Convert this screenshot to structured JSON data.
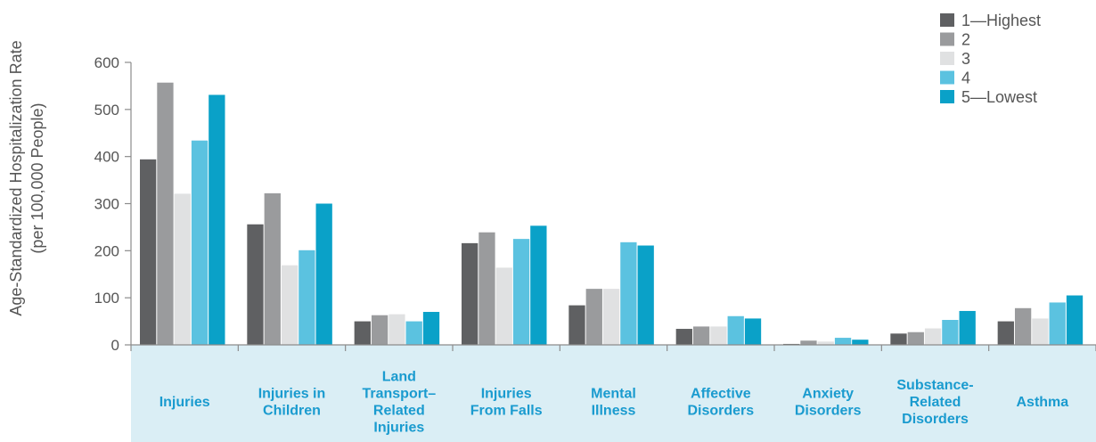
{
  "chart_data": {
    "type": "bar",
    "ylabel": [
      "Age-Standardized Hospitalization Rate",
      "(per 100,000 People)"
    ],
    "ylim": [
      0,
      600
    ],
    "yticks": [
      0,
      100,
      200,
      300,
      400,
      500,
      600
    ],
    "categories": [
      [
        "Injuries"
      ],
      [
        "Injuries in",
        "Children"
      ],
      [
        "Land",
        "Transport–",
        "Related",
        "Injuries"
      ],
      [
        "Injuries",
        "From Falls"
      ],
      [
        "Mental",
        "Illness"
      ],
      [
        "Affective",
        "Disorders"
      ],
      [
        "Anxiety",
        "Disorders"
      ],
      [
        "Substance-",
        "Related",
        "Disorders"
      ],
      [
        "Asthma"
      ]
    ],
    "series": [
      {
        "name": "1—Highest",
        "color": "#5f6062",
        "values": [
          394,
          256,
          50,
          216,
          84,
          34,
          2,
          24,
          50
        ]
      },
      {
        "name": "2",
        "color": "#9a9b9d",
        "values": [
          557,
          322,
          63,
          239,
          119,
          39,
          9,
          27,
          78
        ]
      },
      {
        "name": "3",
        "color": "#e0e1e2",
        "values": [
          321,
          169,
          65,
          164,
          119,
          39,
          7,
          35,
          56
        ]
      },
      {
        "name": "4",
        "color": "#5bc2e0",
        "values": [
          434,
          201,
          50,
          225,
          218,
          61,
          15,
          53,
          90
        ]
      },
      {
        "name": "5—Lowest",
        "color": "#0aa1c8",
        "values": [
          531,
          300,
          70,
          253,
          211,
          56,
          11,
          72,
          105
        ]
      }
    ],
    "legend_position": "top-right",
    "grid": false,
    "colors": {
      "axis": "#8c8c8c",
      "category_band": "#daeef5",
      "category_text": "#1a9bcf"
    }
  }
}
